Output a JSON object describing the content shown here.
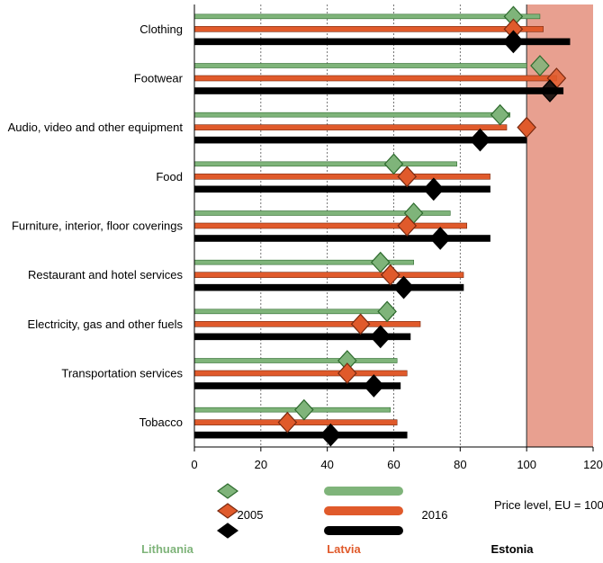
{
  "chart_data": {
    "type": "bar",
    "title": "",
    "xlabel": "",
    "ylabel": "",
    "xlim": [
      0,
      120
    ],
    "xticks": [
      "0",
      "20",
      "40",
      "60",
      "80",
      "100",
      "120"
    ],
    "reference_value": 100,
    "shaded_range": [
      100,
      120
    ],
    "categories": [
      "Clothing",
      "Footwear",
      "Audio, video and other equipment",
      "Food",
      "Furniture, interior, floor coverings",
      "Restaurant and hotel services",
      "Electricity, gas and other fuels",
      "Transportation services",
      "Tobacco"
    ],
    "series": [
      {
        "country": "Lithuania",
        "color": "#7fb47a",
        "values_2016": [
          104,
          100,
          95,
          79,
          77,
          66,
          58,
          61,
          59
        ],
        "values_2005": [
          96,
          104,
          92,
          60,
          66,
          56,
          58,
          46,
          33
        ]
      },
      {
        "country": "Latvia",
        "color": "#e05a2b",
        "values_2016": [
          105,
          109,
          94,
          89,
          82,
          81,
          68,
          64,
          61
        ],
        "values_2005": [
          96,
          109,
          100,
          64,
          64,
          59,
          50,
          46,
          28
        ]
      },
      {
        "country": "Estonia",
        "color": "#000000",
        "values_2016": [
          113,
          111,
          100,
          89,
          89,
          81,
          65,
          62,
          64
        ],
        "values_2005": [
          96,
          107,
          86,
          72,
          74,
          63,
          56,
          54,
          41
        ]
      }
    ],
    "legend": {
      "label_2005": "2005",
      "label_2016": "2016",
      "note": "Price level, EU = 100",
      "placement": "bottom"
    },
    "grid": "vertical dashed"
  },
  "colors": {
    "shade": "#e8a090",
    "lithuania": "#7fb47a",
    "latvia": "#e05a2b",
    "estonia": "#000000"
  }
}
